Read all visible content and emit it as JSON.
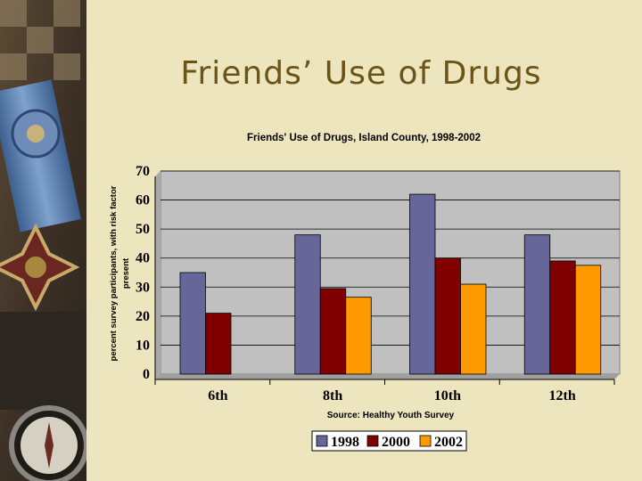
{
  "slide": {
    "title": "Friends’ Use of Drugs"
  },
  "decor": {
    "left_strip": "medal-and-compass-photo"
  },
  "chart_data": {
    "type": "bar",
    "title": "Friends' Use of Drugs, Island County, 1998-2002",
    "ylabel_line1": "percent survey participants, with risk factor",
    "ylabel_line2": "present",
    "xlabel": "",
    "source": "Source: Healthy Youth Survey",
    "categories": [
      "6th",
      "8th",
      "10th",
      "12th"
    ],
    "series": [
      {
        "name": "1998",
        "color": "#666699",
        "values": [
          35,
          48,
          62,
          48
        ]
      },
      {
        "name": "2000",
        "color": "#800000",
        "values": [
          21,
          29.5,
          40,
          39
        ]
      },
      {
        "name": "2002",
        "color": "#ff9900",
        "values": [
          null,
          26.5,
          31,
          37.5
        ]
      }
    ],
    "yticks": [
      0,
      10,
      20,
      30,
      40,
      50,
      60,
      70
    ],
    "ylim": [
      0,
      70
    ],
    "grid": true,
    "plot_background": "#c0c0c0",
    "legend_position": "bottom"
  }
}
